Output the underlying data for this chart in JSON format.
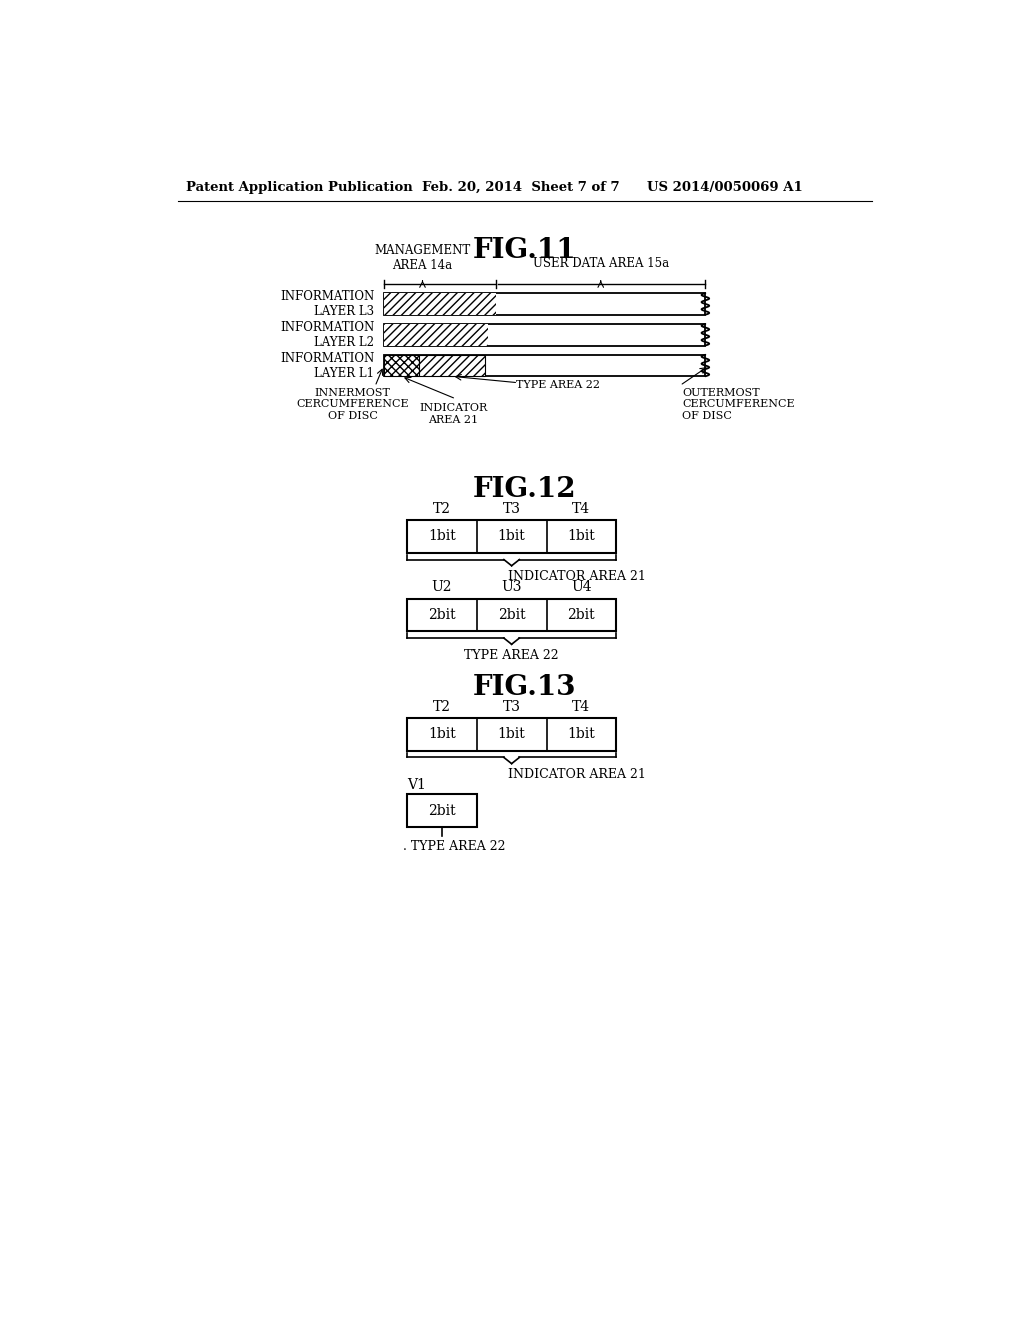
{
  "bg_color": "#ffffff",
  "header_left": "Patent Application Publication",
  "header_mid": "Feb. 20, 2014  Sheet 7 of 7",
  "header_right": "US 2014/0050069 A1",
  "fig11_title": "FIG.11",
  "fig12_title": "FIG.12",
  "fig13_title": "FIG.13",
  "layers": [
    "INFORMATION\nLAYER L3",
    "INFORMATION\nLAYER L2",
    "INFORMATION\nLAYER L1"
  ],
  "management_label": "MANAGEMENT\nAREA 14a",
  "user_data_label": "USER DATA AREA 15a",
  "innermost_label": "INNERMOST\nCERCUMFERENCE\nOF DISC",
  "type_area_label": "TYPE AREA 22",
  "indicator_area_label": "INDICATOR\nAREA 21",
  "outermost_label": "OUTERMOST\nCERCUMFERENCE\nOF DISC",
  "fig12_t_labels": [
    "T2",
    "T3",
    "T4"
  ],
  "fig12_top_cells": [
    "1bit",
    "1bit",
    "1bit"
  ],
  "fig12_indicator_label": "INDICATOR AREA 21",
  "fig12_u_labels": [
    "U2",
    "U3",
    "U4"
  ],
  "fig12_bottom_cells": [
    "2bit",
    "2bit",
    "2bit"
  ],
  "fig12_type_label": "TYPE AREA 22",
  "fig13_t_labels": [
    "T2",
    "T3",
    "T4"
  ],
  "fig13_top_cells": [
    "1bit",
    "1bit",
    "1bit"
  ],
  "fig13_indicator_label": "INDICATOR AREA 21",
  "fig13_v_label": "V1",
  "fig13_bottom_cell": "2bit",
  "fig13_type_label": "TYPE AREA 22"
}
